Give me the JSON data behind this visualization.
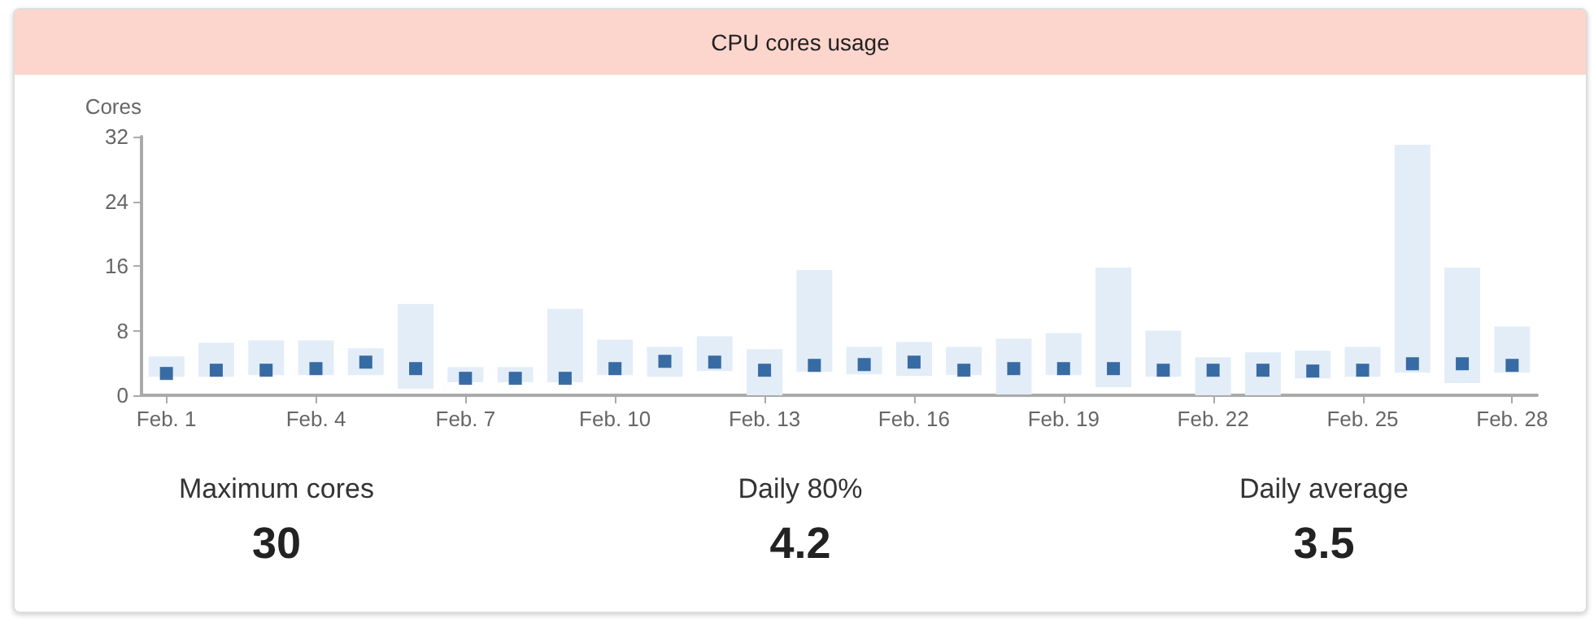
{
  "chart_data": {
    "type": "bar",
    "title": "CPU cores usage",
    "ylabel": "Cores",
    "categories": [
      "Feb. 1",
      null,
      null,
      "Feb. 4",
      null,
      null,
      "Feb. 7",
      null,
      null,
      "Feb. 10",
      null,
      null,
      "Feb. 13",
      null,
      null,
      "Feb. 16",
      null,
      null,
      "Feb. 19",
      null,
      null,
      "Feb. 22",
      null,
      null,
      "Feb. 25",
      null,
      null,
      "Feb. 28"
    ],
    "series": [
      {
        "color": "#e3edf8",
        "base": [
          2.3,
          2.3,
          2.5,
          2.5,
          2.5,
          0.8,
          1.6,
          1.6,
          1.6,
          2.5,
          2.3,
          3.0,
          0,
          2.9,
          2.6,
          2.4,
          2.5,
          0.1,
          2.5,
          1.0,
          2.3,
          0,
          0,
          2.1,
          2.3,
          2.8,
          1.5,
          2.8
        ],
        "values": [
          2.5,
          4.2,
          4.3,
          4.3,
          3.3,
          10.5,
          1.9,
          1.9,
          9.1,
          4.4,
          3.7,
          4.3,
          5.7,
          12.6,
          3.4,
          4.2,
          3.5,
          6.9,
          5.2,
          14.8,
          5.7,
          4.7,
          5.3,
          3.4,
          3.7,
          28.2,
          14.3,
          5.7
        ]
      },
      {
        "type": "scatter",
        "color": "#0b4a8f",
        "marker": "square",
        "values": [
          2.7,
          3.1,
          3.1,
          3.3,
          4.1,
          3.3,
          2.1,
          2.1,
          2.1,
          3.3,
          4.2,
          4.1,
          3.1,
          3.7,
          3.8,
          4.1,
          3.1,
          3.3,
          3.3,
          3.3,
          3.1,
          3.1,
          3.1,
          3.0,
          3.1,
          3.9,
          3.9,
          3.7
        ]
      }
    ],
    "ylim": [
      0,
      32
    ],
    "yticks": [
      0,
      8,
      16,
      24,
      32
    ],
    "grid": false,
    "annotations": [
      "Maximum cores",
      "30",
      "Daily 80%",
      "4.2",
      "Daily average",
      "3.5"
    ]
  }
}
